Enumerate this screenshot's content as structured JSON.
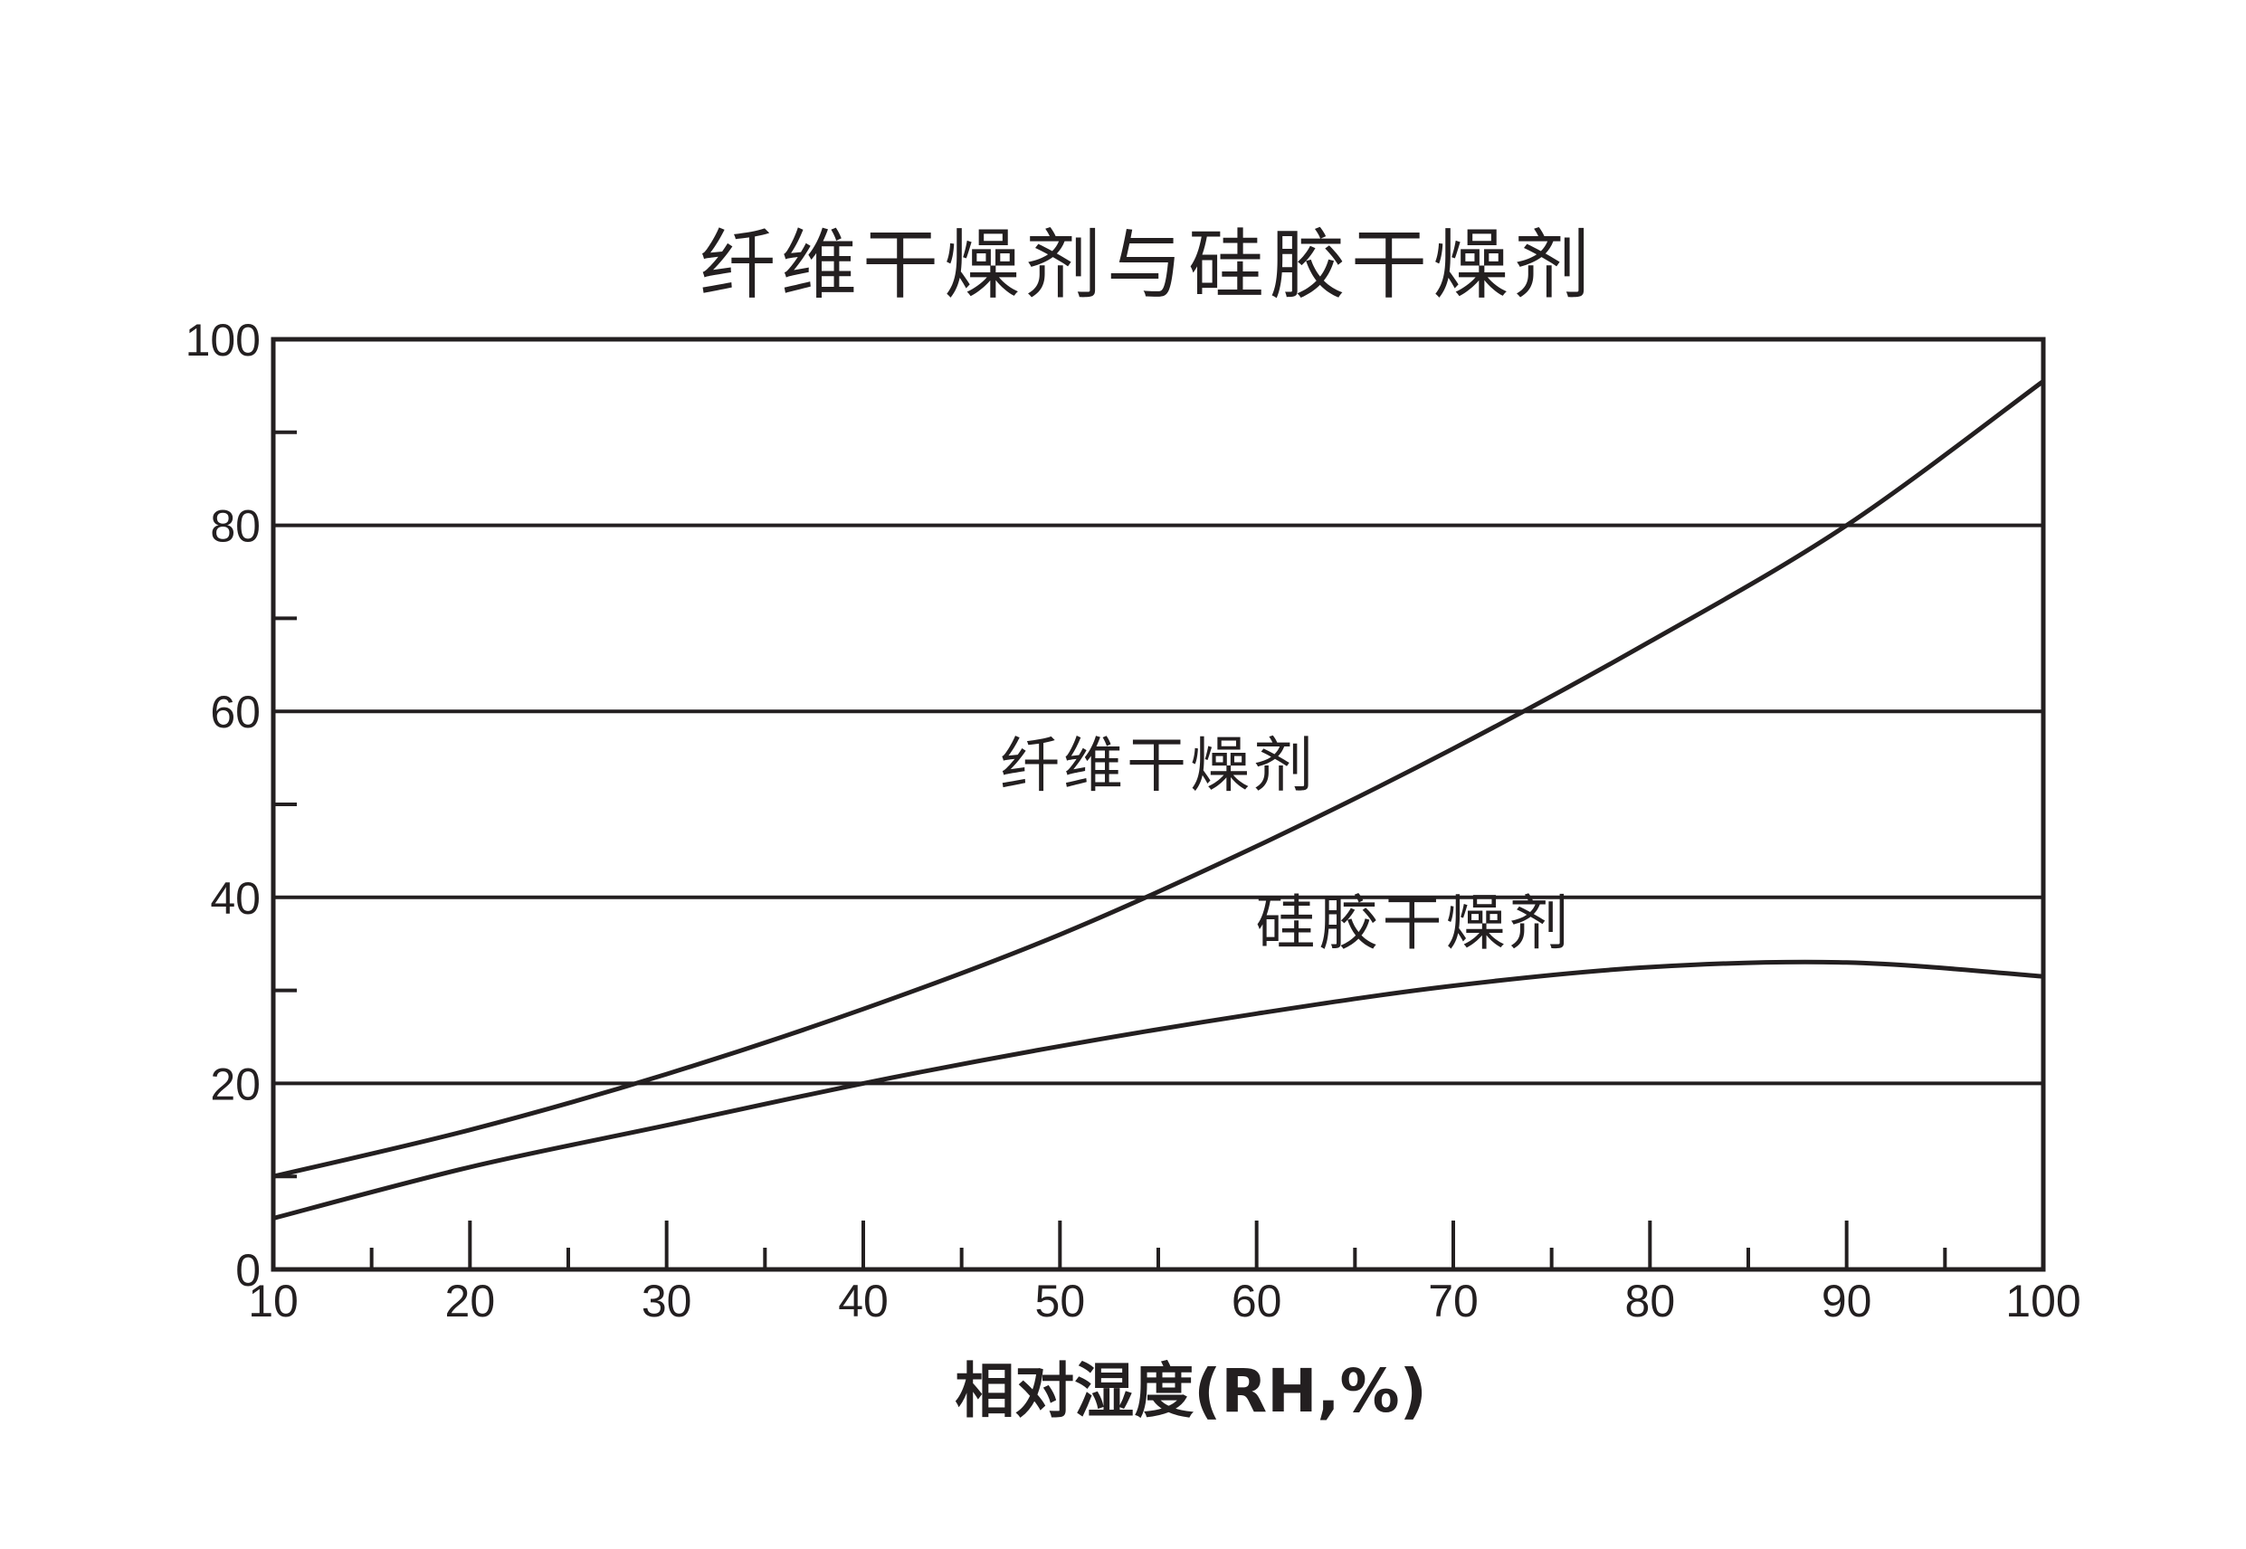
{
  "chart_data": {
    "type": "line",
    "title": "纤维干燥剂与硅胶干燥剂",
    "xlabel": "相对湿度(RH,%)",
    "ylabel": "",
    "xlim": [
      10,
      100
    ],
    "ylim": [
      0,
      100
    ],
    "x_ticks": [
      10,
      20,
      30,
      40,
      50,
      60,
      70,
      80,
      90,
      100
    ],
    "x_minor_ticks": [
      15,
      25,
      35,
      45,
      55,
      65,
      75,
      85,
      95
    ],
    "y_ticks": [
      0,
      20,
      40,
      60,
      80,
      100
    ],
    "y_minor_ticks": [
      10,
      30,
      50,
      70,
      90
    ],
    "grid": "horizontal",
    "grid_lines": [
      20,
      40,
      60,
      80
    ],
    "series": [
      {
        "name": "纤维干燥剂",
        "label_at": [
          55,
          52
        ],
        "x": [
          10,
          20,
          30,
          40,
          50,
          60,
          70,
          80,
          90,
          100
        ],
        "y": [
          10,
          15,
          21,
          28,
          36,
          45.5,
          56,
          67.5,
          80,
          95.5
        ]
      },
      {
        "name": "硅胶干燥剂",
        "label_at": [
          68,
          35
        ],
        "x": [
          10,
          20,
          30,
          40,
          50,
          60,
          70,
          80,
          90,
          100
        ],
        "y": [
          5.5,
          11,
          15.5,
          20,
          24,
          27.5,
          30.5,
          32.5,
          33,
          31.5
        ]
      }
    ]
  }
}
